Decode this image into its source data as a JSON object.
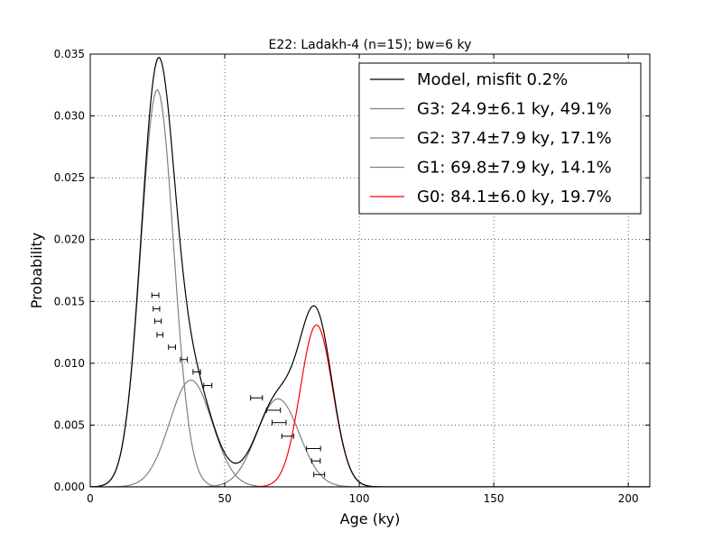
{
  "chart_data": {
    "type": "line",
    "title": "E22: Ladakh-4 (n=15); bw=6 ky",
    "xlabel": "Age (ky)",
    "ylabel": "Probability",
    "xlim": [
      0,
      208
    ],
    "ylim": [
      0,
      0.035
    ],
    "xticks": [
      0,
      50,
      100,
      150,
      200
    ],
    "xtick_labels": [
      "0",
      "50",
      "100",
      "150",
      "200"
    ],
    "yticks": [
      0,
      0.005,
      0.01,
      0.015,
      0.02,
      0.025,
      0.03,
      0.035
    ],
    "ytick_labels": [
      "0.000",
      "0.005",
      "0.010",
      "0.015",
      "0.020",
      "0.025",
      "0.030",
      "0.035"
    ],
    "grid": true,
    "legend_position": "top-right",
    "series": [
      {
        "name": "Model, misfit 0.2%",
        "color": "#000000",
        "kind": "sum"
      },
      {
        "name": "G3: 24.9±6.1 ky, 49.1%",
        "color": "#808080",
        "mean": 24.9,
        "sd": 6.1,
        "weight": 0.491
      },
      {
        "name": "G2: 37.4±7.9 ky, 17.1%",
        "color": "#808080",
        "mean": 37.4,
        "sd": 7.9,
        "weight": 0.171
      },
      {
        "name": "G1: 69.8±7.9 ky, 14.1%",
        "color": "#808080",
        "mean": 69.8,
        "sd": 7.9,
        "weight": 0.141
      },
      {
        "name": "G0: 84.1±6.0 ky, 19.7%",
        "color": "#ff0000",
        "mean": 84.1,
        "sd": 6.0,
        "weight": 0.197
      }
    ],
    "samples": [
      {
        "age": 24.2,
        "err": 1.3,
        "y": 0.0155
      },
      {
        "age": 24.6,
        "err": 1.2,
        "y": 0.0144
      },
      {
        "age": 25.2,
        "err": 1.2,
        "y": 0.0134
      },
      {
        "age": 25.9,
        "err": 1.1,
        "y": 0.0123
      },
      {
        "age": 30.4,
        "err": 1.3,
        "y": 0.0113
      },
      {
        "age": 34.8,
        "err": 1.3,
        "y": 0.0103
      },
      {
        "age": 39.6,
        "err": 1.4,
        "y": 0.0093
      },
      {
        "age": 43.7,
        "err": 1.5,
        "y": 0.0082
      },
      {
        "age": 61.8,
        "err": 2.2,
        "y": 0.0072
      },
      {
        "age": 68.1,
        "err": 2.6,
        "y": 0.0062
      },
      {
        "age": 70.2,
        "err": 2.6,
        "y": 0.0052
      },
      {
        "age": 73.4,
        "err": 2.2,
        "y": 0.0041
      },
      {
        "age": 83.0,
        "err": 2.6,
        "y": 0.0031
      },
      {
        "age": 83.9,
        "err": 1.6,
        "y": 0.0021
      },
      {
        "age": 85.1,
        "err": 2.0,
        "y": 0.001
      }
    ]
  }
}
